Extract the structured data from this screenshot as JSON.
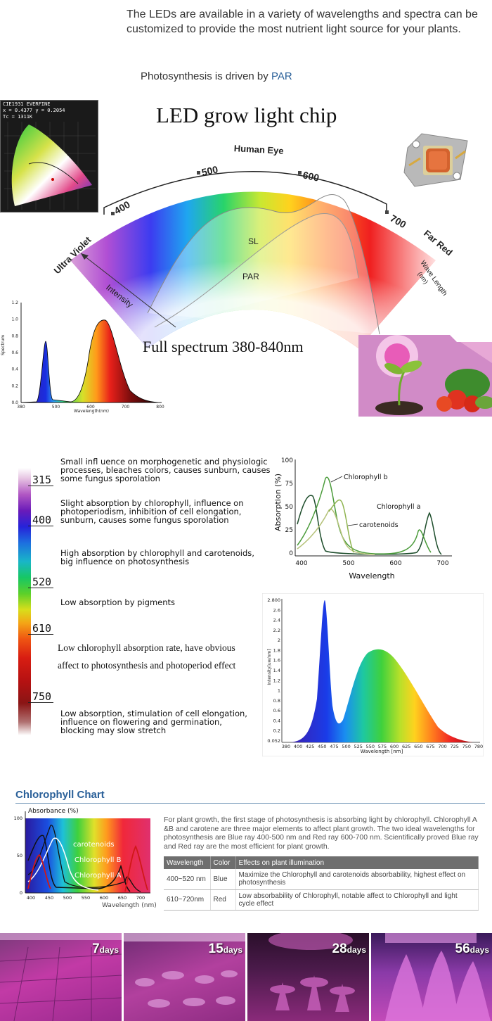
{
  "intro": {
    "paragraph": "The LEDs are available in a variety of wavelengths and spectra can be customized to provide the most nutrient light source for your plants.",
    "par_prefix": "Photosynthesis is driven by ",
    "par_link": "PAR"
  },
  "cie": {
    "line1": "CIE1931 EVERFINE",
    "line2": "x = 0.4377 y = 0.2054",
    "line3": "Tc = 1311K"
  },
  "chip_title": "LED grow light chip",
  "arc": {
    "human_eye": "Human Eye",
    "ticks": [
      "400",
      "500",
      "600",
      "700"
    ],
    "left_label": "Ultra Violet",
    "right_label": "Far Red",
    "intensity": "Intensity",
    "wave_length": "Wave Length",
    "wave_unit": "(nm)",
    "sl": "SL",
    "par": "PAR"
  },
  "small_spectrum": {
    "y_ticks": [
      "0.0",
      "0.2",
      "0.4",
      "0.6",
      "0.8",
      "1.0",
      "1.2"
    ],
    "x_ticks": [
      "380",
      "500",
      "600",
      "700",
      "800"
    ],
    "ylabel": "Spectrum",
    "xlabel": "Wavelength(nm)"
  },
  "full_spectrum": "Full spectrum 380-840nm",
  "bands": [
    {
      "label": "315"
    },
    {
      "label": "400"
    },
    {
      "label": "520"
    },
    {
      "label": "610"
    },
    {
      "label": "750"
    }
  ],
  "band_desc": {
    "d1": "Small infl uence on morphogenetic and physiologic processes, bleaches colors, causes sunburn, causes some fungus sporolation",
    "d2": "Slight absorption by chlorophyll, influence on photoperiodism, inhibition of cell elongation, sunburn, causes some fungus sporolation",
    "d3": "High absorption by chlorophyll and carotenoids, big influence on photosynthesis",
    "d4": "Low absorption by pigments",
    "d5a": "Low chlorophyll absorption rate, have obvious",
    "d5b": "affect to photosynthesis and photoperiod effect",
    "d6": "Low absorption, stimulation of cell elongation, influence on  flowering and germination, blocking may slow stretch"
  },
  "absorption_chart": {
    "ylabel": "Absorption (%)",
    "xlabel": "Wavelength",
    "y_ticks": [
      "0",
      "25",
      "50",
      "75",
      "100"
    ],
    "x_ticks": [
      "400",
      "500",
      "600",
      "700"
    ],
    "labels": {
      "chl_b": "Chlorophyll b",
      "chl_a": "Chlorophyll a",
      "carot": "carotenoids"
    }
  },
  "intensity_chart": {
    "ylabel": "Intensity[uw/nm]",
    "xlabel": "Wavelength [nm]",
    "y_ticks": [
      "0.052",
      "0.2",
      "0.4",
      "0.6",
      "0.8",
      "1",
      "1.2",
      "1.4",
      "1.6",
      "1.8",
      "2",
      "2.2",
      "2.4",
      "2.6",
      "2.800"
    ],
    "x_ticks": [
      "380",
      "400",
      "425",
      "450",
      "475",
      "500",
      "525",
      "550",
      "575",
      "600",
      "625",
      "650",
      "675",
      "700",
      "725",
      "750",
      "780"
    ]
  },
  "chlorophyll": {
    "title": "Chlorophyll Chart",
    "chart": {
      "ylabel": "Absorbance (%)",
      "xlabel": "Wavelength (nm)",
      "y_ticks": [
        "100",
        "50",
        "0"
      ],
      "x_ticks": [
        "400",
        "450",
        "500",
        "550",
        "600",
        "650",
        "700"
      ],
      "labels": {
        "carot": "carotenoids",
        "chl_b": "Chlorophyll B",
        "chl_a": "Chlorophyll A"
      }
    },
    "text": "For plant growth, the first stage of photosynthesis is absorbing light by chlorophyll. Chlorophyll A &B and carotene are three major elements to affect plant growth. The two ideal wavelengths for photosynthesis are Blue ray 400-500 nm and Red ray 600-700 nm. Scientifically proved Blue ray and Red ray are the most efficient for plant growth.",
    "table": {
      "headers": [
        "Wavelength",
        "Color",
        "Effects on plant illumination"
      ],
      "rows": [
        [
          "400~520 nm",
          "Blue",
          "Maximize the Chlorophyll and carotenoids  absorbability, highest effect on photosynthesis"
        ],
        [
          "610~720nm",
          "Red",
          "Low absorbability of Chlorophyll, notable affect to Chlorophyll and light cycle effect"
        ]
      ]
    }
  },
  "growth": [
    {
      "num": "7",
      "unit": "days"
    },
    {
      "num": "15",
      "unit": "days"
    },
    {
      "num": "28",
      "unit": "days"
    },
    {
      "num": "56",
      "unit": "days"
    }
  ]
}
